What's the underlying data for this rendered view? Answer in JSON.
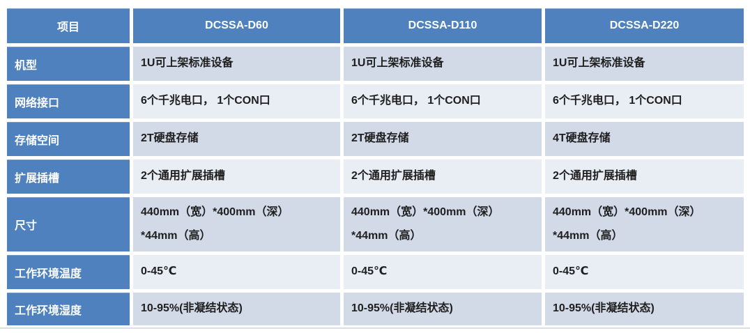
{
  "table": {
    "columns": [
      "项目",
      "DCSSA-D60",
      "DCSSA-D110",
      "DCSSA-D220"
    ],
    "rows": [
      {
        "label": "机型",
        "cells": [
          "1U可上架标准设备",
          "1U可上架标准设备",
          "1U可上架标准设备"
        ]
      },
      {
        "label": "网络接口",
        "cells": [
          "6个千兆电口， 1个CON口",
          "6个千兆电口， 1个CON口",
          "6个千兆电口， 1个CON口"
        ]
      },
      {
        "label": "存储空间",
        "cells": [
          "2T硬盘存储",
          "2T硬盘存储",
          "4T硬盘存储"
        ]
      },
      {
        "label": "扩展插槽",
        "cells": [
          "2个通用扩展插槽",
          "2个通用扩展插槽",
          "2个通用扩展插槽"
        ]
      },
      {
        "label": "尺寸",
        "cells": [
          "440mm（宽）*400mm（深）\n*44mm（高）",
          "440mm（宽）*400mm（深）\n*44mm（高）",
          "440mm（宽）*400mm（深）\n*44mm（高）"
        ]
      },
      {
        "label": "工作环境温度",
        "cells": [
          "0-45℃",
          "0-45℃",
          "0-45℃"
        ]
      },
      {
        "label": "工作环境湿度",
        "cells": [
          "10-95%(非凝结状态)",
          "10-95%(非凝结状态)",
          "10-95%(非凝结状态)"
        ]
      }
    ]
  },
  "colors": {
    "header_blue": "#4e81bd",
    "band_dark": "#d2d9e7",
    "band_light": "#e9eef5",
    "grid_lines": "#ffffff",
    "header_text": "#ffffff",
    "body_text": "#1e1e1e",
    "bottom_divider": "#dadde3"
  }
}
